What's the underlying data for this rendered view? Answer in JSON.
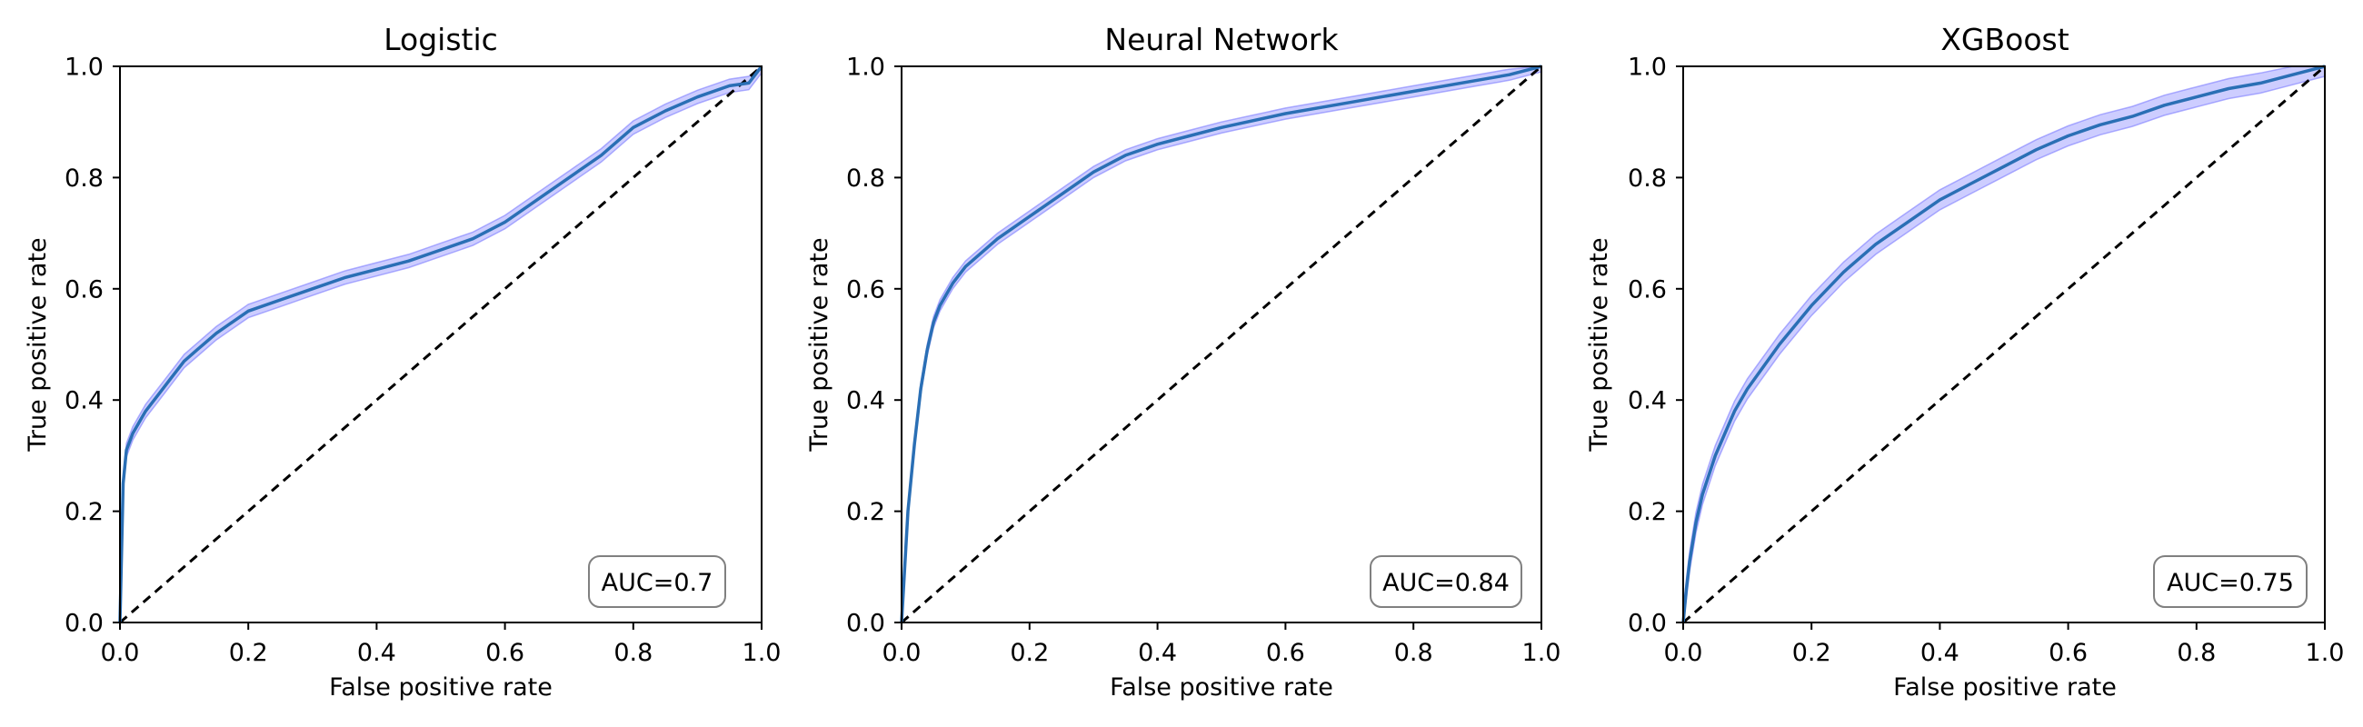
{
  "chart_data": [
    {
      "type": "line",
      "title": "Logistic",
      "xlabel": "False positive rate",
      "ylabel": "True positive rate",
      "xlim": [
        0,
        1
      ],
      "ylim": [
        0,
        1
      ],
      "xticks": [
        "0.0",
        "0.2",
        "0.4",
        "0.6",
        "0.8",
        "1.0"
      ],
      "yticks": [
        "0.0",
        "0.2",
        "0.4",
        "0.6",
        "0.8",
        "1.0"
      ],
      "grid": false,
      "annotation": "AUC=0.7",
      "line_color": "#2a6fb5",
      "band_color": "#7b7bff",
      "x": [
        0.0,
        0.005,
        0.01,
        0.02,
        0.04,
        0.06,
        0.08,
        0.1,
        0.12,
        0.15,
        0.2,
        0.25,
        0.3,
        0.35,
        0.4,
        0.45,
        0.5,
        0.55,
        0.6,
        0.65,
        0.7,
        0.75,
        0.8,
        0.85,
        0.9,
        0.95,
        0.98,
        1.0
      ],
      "y": [
        0.0,
        0.25,
        0.31,
        0.34,
        0.38,
        0.41,
        0.44,
        0.47,
        0.49,
        0.52,
        0.56,
        0.58,
        0.6,
        0.62,
        0.635,
        0.65,
        0.67,
        0.69,
        0.72,
        0.76,
        0.8,
        0.84,
        0.89,
        0.92,
        0.945,
        0.965,
        0.97,
        1.0
      ],
      "band": 0.012
    },
    {
      "type": "line",
      "title": "Neural Network",
      "xlabel": "False positive rate",
      "ylabel": "True positive rate",
      "xlim": [
        0,
        1
      ],
      "ylim": [
        0,
        1
      ],
      "xticks": [
        "0.0",
        "0.2",
        "0.4",
        "0.6",
        "0.8",
        "1.0"
      ],
      "yticks": [
        "0.0",
        "0.2",
        "0.4",
        "0.6",
        "0.8",
        "1.0"
      ],
      "grid": false,
      "annotation": "AUC=0.84",
      "line_color": "#2a6fb5",
      "band_color": "#7b7bff",
      "x": [
        0.0,
        0.005,
        0.01,
        0.02,
        0.03,
        0.04,
        0.05,
        0.06,
        0.08,
        0.1,
        0.12,
        0.15,
        0.2,
        0.25,
        0.3,
        0.35,
        0.4,
        0.45,
        0.5,
        0.6,
        0.7,
        0.8,
        0.9,
        0.95,
        1.0
      ],
      "y": [
        0.0,
        0.1,
        0.2,
        0.32,
        0.42,
        0.49,
        0.54,
        0.57,
        0.61,
        0.64,
        0.66,
        0.69,
        0.73,
        0.77,
        0.81,
        0.84,
        0.86,
        0.875,
        0.89,
        0.915,
        0.935,
        0.955,
        0.975,
        0.985,
        1.0
      ],
      "band": 0.01
    },
    {
      "type": "line",
      "title": "XGBoost",
      "xlabel": "False positive rate",
      "ylabel": "True positive rate",
      "xlim": [
        0,
        1
      ],
      "ylim": [
        0,
        1
      ],
      "xticks": [
        "0.0",
        "0.2",
        "0.4",
        "0.6",
        "0.8",
        "1.0"
      ],
      "yticks": [
        "0.0",
        "0.2",
        "0.4",
        "0.6",
        "0.8",
        "1.0"
      ],
      "grid": false,
      "annotation": "AUC=0.75",
      "line_color": "#2a6fb5",
      "band_color": "#7b7bff",
      "x": [
        0.0,
        0.005,
        0.01,
        0.02,
        0.03,
        0.05,
        0.08,
        0.1,
        0.15,
        0.2,
        0.25,
        0.3,
        0.35,
        0.4,
        0.45,
        0.5,
        0.55,
        0.6,
        0.65,
        0.7,
        0.75,
        0.8,
        0.85,
        0.9,
        0.95,
        1.0
      ],
      "y": [
        0.0,
        0.06,
        0.11,
        0.18,
        0.23,
        0.3,
        0.38,
        0.42,
        0.5,
        0.57,
        0.63,
        0.68,
        0.72,
        0.76,
        0.79,
        0.82,
        0.85,
        0.875,
        0.895,
        0.91,
        0.93,
        0.945,
        0.96,
        0.97,
        0.985,
        1.0
      ],
      "band": 0.018
    }
  ]
}
